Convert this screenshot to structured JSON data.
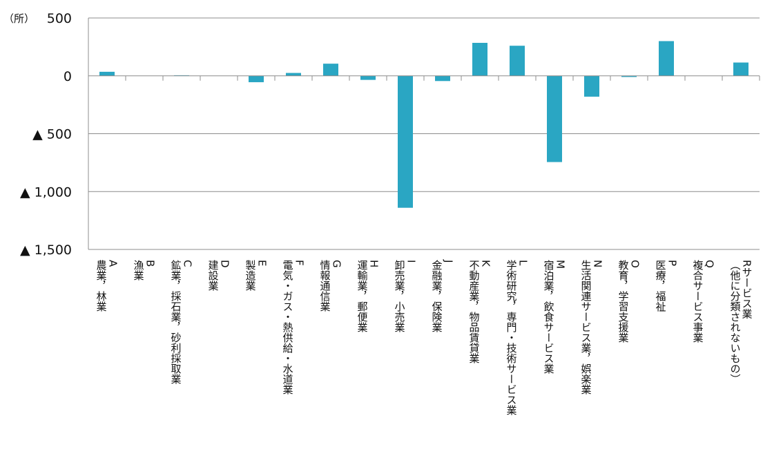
{
  "chart_data": {
    "type": "bar",
    "unit_label": "（所）",
    "ylim": [
      -1500,
      500
    ],
    "y_ticks": [
      {
        "value": 500,
        "label": "500"
      },
      {
        "value": 0,
        "label": "0"
      },
      {
        "value": -500,
        "label": "▲ 500"
      },
      {
        "value": -1000,
        "label": "▲ 1,000"
      },
      {
        "value": -1500,
        "label": "▲ 1,500"
      }
    ],
    "grid": true,
    "bar_color": "#2AA6C3",
    "categories": [
      "A農業，林業",
      "B漁業",
      "C鉱業，採石業，砂利採取業",
      "D建設業",
      "E製造業",
      "F電気・ガス・熱供給・水道業",
      "G情報通信業",
      "H運輸業，郵便業",
      "I卸売業，小売業",
      "J金融業，保険業",
      "K不動産業，物品賃貸業",
      "L学術研究，専門・技術サービス業",
      "M宿泊業，飲食サービス業",
      "N生活関連サービス業，娯楽業",
      "O教育，学習支援業",
      "P医療，福祉",
      "Q複合サービス事業",
      "Rサービス業（他に分類されないもの）"
    ],
    "category_lines": [
      [
        "A",
        "農業，林業"
      ],
      [
        "B",
        "漁業"
      ],
      [
        "C",
        "鉱業，採石業，砂利採取業"
      ],
      [
        "D",
        "建設業"
      ],
      [
        "E",
        "製造業"
      ],
      [
        "F",
        "電気・ガス・熱供給・水道業"
      ],
      [
        "G",
        "情報通信業"
      ],
      [
        "H",
        "運輸業，郵便業"
      ],
      [
        "I",
        "卸売業，小売業"
      ],
      [
        "J",
        "金融業，保険業"
      ],
      [
        "K",
        "不動産業，物品賃貸業"
      ],
      [
        "L",
        "学術研究，専門・技術サービス業"
      ],
      [
        "M",
        "宿泊業，飲食サービス業"
      ],
      [
        "N",
        "生活関連サービス業，娯楽業"
      ],
      [
        "O",
        "教育，学習支援業"
      ],
      [
        "P",
        "医療，福祉"
      ],
      [
        "Q",
        "複合サービス事業"
      ],
      [
        "Rサービス業",
        "（他に分類されないもの）"
      ]
    ],
    "values": [
      35,
      0,
      5,
      0,
      -55,
      25,
      105,
      -35,
      -1140,
      -45,
      285,
      260,
      -745,
      -180,
      -10,
      300,
      0,
      115
    ]
  }
}
